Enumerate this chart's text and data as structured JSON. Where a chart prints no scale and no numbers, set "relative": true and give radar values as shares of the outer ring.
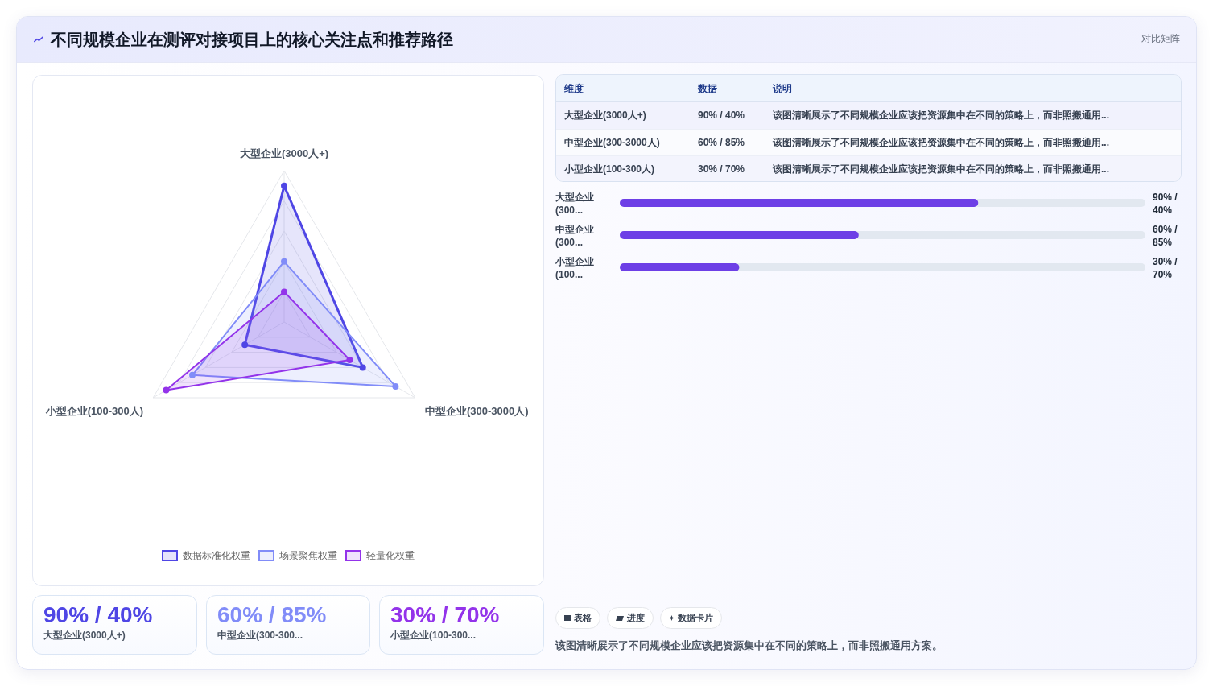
{
  "chart_data": [
    {
      "type": "other",
      "title": "不同规模企业在测评对接项目上的核心关注点和推荐路径",
      "annotations": [
        "对比矩阵"
      ]
    },
    {
      "type": "radar",
      "categories": [
        "大型企业(3000人+)",
        "中型企业(300-3000人)",
        "小型企业(100-300人)"
      ],
      "relative": true,
      "grid": true,
      "legend": "bottom",
      "marker": "circle",
      "series": [
        {
          "name": "数据标准化权重",
          "color": "#4f46e5",
          "values": [
            0.9,
            0.6,
            0.3
          ]
        },
        {
          "name": "场景聚焦权重",
          "color": "#818cf8",
          "values": [
            0.4,
            0.85,
            0.7
          ]
        },
        {
          "name": "轻量化权重",
          "color": "#9333ea",
          "values": [
            0.2,
            0.5,
            0.9
          ]
        }
      ]
    },
    {
      "type": "other",
      "categories": [
        "维度",
        "数据",
        "说明"
      ],
      "y_categories": [
        "大型企业(3000人+)",
        "中型企业(300-3000人)",
        "小型企业(100-300人)"
      ],
      "cell_labels": [
        [
          "90% / 40%",
          "该图清晰展示了不同规模企业应该把资源集中在不同的策略上，而非照搬通用..."
        ],
        [
          "60% / 85%",
          "该图清晰展示了不同规模企业应该把资源集中在不同的策略上，而非照搬通用..."
        ],
        [
          "30% / 70%",
          "该图清晰展示了不同规模企业应该把资源集中在不同的策略上，而非照搬通用..."
        ]
      ]
    },
    {
      "type": "bar",
      "orientation": "horizontal",
      "categories": [
        "大型企业(300...",
        "中型企业(300...",
        "小型企业(100..."
      ],
      "values": [
        90,
        60,
        30
      ],
      "xlim": [
        0,
        132
      ],
      "value_labels": [
        "90% / 40%",
        "60% / 85%",
        "30% / 70%"
      ],
      "color": "#6d3fe6"
    },
    {
      "type": "other",
      "title": "90% / 40%",
      "subtitle": "大型企业(3000人+)",
      "color": "#4f46e5"
    },
    {
      "type": "other",
      "title": "60% / 85%",
      "subtitle": "中型企业(300-300...",
      "color": "#818cf8"
    },
    {
      "type": "other",
      "title": "30% / 70%",
      "subtitle": "小型企业(100-300...",
      "color": "#9333ea"
    },
    {
      "type": "other",
      "categories": [
        "表格",
        "进度",
        "数据卡片"
      ],
      "annotations": [
        "该图清晰展示了不同规模企业应该把资源集中在不同的策略上，而非照搬通用方案。"
      ]
    }
  ]
}
